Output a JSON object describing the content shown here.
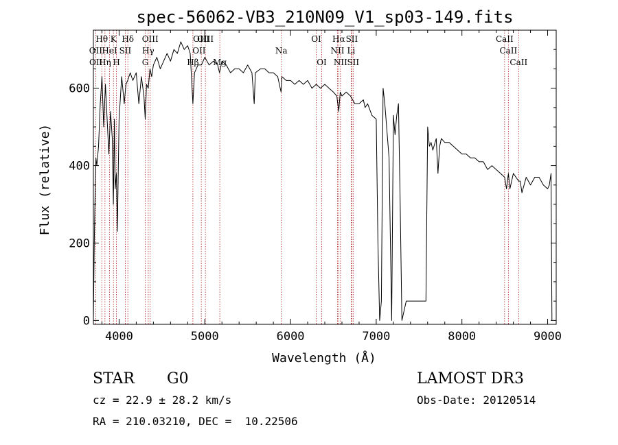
{
  "chart_data": {
    "type": "line",
    "title": "spec-56062-VB3_210N09_V1_sp03-149.fits",
    "xlabel": "Wavelength (Å)",
    "ylabel": "Flux (relative)",
    "xlim": [
      3700,
      9100
    ],
    "ylim": [
      -10,
      750
    ],
    "xticks": [
      4000,
      5000,
      6000,
      7000,
      8000,
      9000
    ],
    "yticks": [
      0,
      200,
      400,
      600
    ],
    "series": [
      {
        "name": "spectrum",
        "x": [
          3700,
          3710,
          3720,
          3730,
          3740,
          3760,
          3780,
          3800,
          3820,
          3840,
          3860,
          3880,
          3900,
          3920,
          3933,
          3945,
          3955,
          3968,
          3980,
          4000,
          4030,
          4060,
          4080,
          4100,
          4130,
          4160,
          4200,
          4230,
          4260,
          4290,
          4305,
          4320,
          4340,
          4360,
          4380,
          4400,
          4440,
          4480,
          4520,
          4560,
          4600,
          4640,
          4680,
          4720,
          4760,
          4800,
          4830,
          4861,
          4880,
          4920,
          4960,
          5000,
          5050,
          5100,
          5150,
          5172,
          5200,
          5250,
          5300,
          5350,
          5400,
          5450,
          5500,
          5550,
          5576,
          5590,
          5650,
          5700,
          5750,
          5800,
          5850,
          5890,
          5900,
          5950,
          6000,
          6050,
          6100,
          6150,
          6200,
          6250,
          6300,
          6350,
          6400,
          6450,
          6500,
          6540,
          6563,
          6580,
          6600,
          6650,
          6700,
          6750,
          6800,
          6850,
          6870,
          6900,
          6950,
          7000,
          7020,
          7040,
          7060,
          7080,
          7100,
          7150,
          7180,
          7200,
          7220,
          7240,
          7260,
          7280,
          7300,
          7350,
          7400,
          7450,
          7500,
          7550,
          7580,
          7600,
          7620,
          7640,
          7660,
          7700,
          7720,
          7740,
          7760,
          7800,
          7850,
          7900,
          7950,
          8000,
          8050,
          8100,
          8150,
          8200,
          8250,
          8300,
          8350,
          8400,
          8450,
          8498,
          8520,
          8542,
          8560,
          8600,
          8662,
          8680,
          8700,
          8750,
          8800,
          8850,
          8900,
          8950,
          9000,
          9020,
          9040,
          9050
        ],
        "y": [
          0,
          190,
          330,
          420,
          400,
          450,
          560,
          630,
          500,
          610,
          520,
          430,
          540,
          470,
          300,
          520,
          340,
          380,
          230,
          520,
          630,
          560,
          610,
          620,
          640,
          620,
          640,
          560,
          630,
          580,
          520,
          610,
          600,
          650,
          630,
          660,
          680,
          650,
          670,
          690,
          670,
          700,
          690,
          720,
          700,
          710,
          690,
          560,
          640,
          660,
          660,
          680,
          660,
          670,
          660,
          640,
          670,
          660,
          640,
          650,
          650,
          640,
          660,
          640,
          560,
          640,
          650,
          650,
          640,
          640,
          630,
          590,
          630,
          620,
          620,
          610,
          620,
          610,
          620,
          600,
          610,
          600,
          610,
          600,
          590,
          580,
          540,
          590,
          580,
          590,
          580,
          560,
          560,
          570,
          550,
          560,
          530,
          520,
          200,
          0,
          50,
          600,
          560,
          420,
          0,
          530,
          480,
          530,
          560,
          300,
          0,
          50,
          50,
          50,
          50,
          50,
          50,
          500,
          450,
          460,
          440,
          470,
          380,
          450,
          470,
          460,
          460,
          450,
          440,
          430,
          430,
          420,
          420,
          410,
          410,
          390,
          400,
          390,
          380,
          370,
          340,
          380,
          340,
          380,
          360,
          360,
          330,
          370,
          350,
          370,
          370,
          350,
          340,
          350,
          380,
          0
        ],
        "color": "#000000"
      }
    ],
    "annotations": [
      {
        "label": "Hθ",
        "x": 3798,
        "row": 1
      },
      {
        "label": "OII",
        "x": 3727,
        "row": 2
      },
      {
        "label": "OII",
        "x": 3729,
        "row": 3
      },
      {
        "label": "Hη",
        "x": 3835,
        "row": 3
      },
      {
        "label": "HeI",
        "x": 3889,
        "row": 2
      },
      {
        "label": "K",
        "x": 3934,
        "row": 1
      },
      {
        "label": "H",
        "x": 3969,
        "row": 3
      },
      {
        "label": "Hδ",
        "x": 4102,
        "row": 1
      },
      {
        "label": "SII",
        "x": 4072,
        "row": 2
      },
      {
        "label": "OIII",
        "x": 4363,
        "row": 1
      },
      {
        "label": "Hγ",
        "x": 4340,
        "row": 2
      },
      {
        "label": "G",
        "x": 4305,
        "row": 3
      },
      {
        "label": "OIII",
        "x": 4959,
        "row": 1
      },
      {
        "label": "OIII",
        "x": 5007,
        "row": 1
      },
      {
        "label": "OII",
        "x": 4933,
        "row": 2
      },
      {
        "label": "Hβ",
        "x": 4861,
        "row": 3
      },
      {
        "label": "Mg",
        "x": 5175,
        "row": 3
      },
      {
        "label": "Na",
        "x": 5893,
        "row": 2
      },
      {
        "label": "OI",
        "x": 6300,
        "row": 1
      },
      {
        "label": "OI",
        "x": 6364,
        "row": 3
      },
      {
        "label": "Hα",
        "x": 6563,
        "row": 1
      },
      {
        "label": "SII",
        "x": 6716,
        "row": 1
      },
      {
        "label": "NII",
        "x": 6548,
        "row": 2
      },
      {
        "label": "Li",
        "x": 6708,
        "row": 2
      },
      {
        "label": "NII",
        "x": 6583,
        "row": 3
      },
      {
        "label": "SII",
        "x": 6731,
        "row": 3
      },
      {
        "label": "CaII",
        "x": 8498,
        "row": 1
      },
      {
        "label": "CaII",
        "x": 8542,
        "row": 2
      },
      {
        "label": "CaII",
        "x": 8662,
        "row": 3
      }
    ],
    "line_markers": [
      3727,
      3798,
      3835,
      3889,
      3934,
      3969,
      4072,
      4102,
      4305,
      4340,
      4363,
      4861,
      4959,
      5007,
      5175,
      5893,
      6300,
      6364,
      6548,
      6563,
      6583,
      6708,
      6716,
      6731,
      8498,
      8542,
      8662
    ]
  },
  "info": {
    "class_label": "STAR",
    "subclass_label": "G0",
    "survey": "LAMOST DR3",
    "cz": "cz = 22.9 ± 28.2 km/s",
    "obs_date": "Obs-Date: 20120514",
    "radec": "RA = 210.03210, DEC =  10.22506"
  }
}
